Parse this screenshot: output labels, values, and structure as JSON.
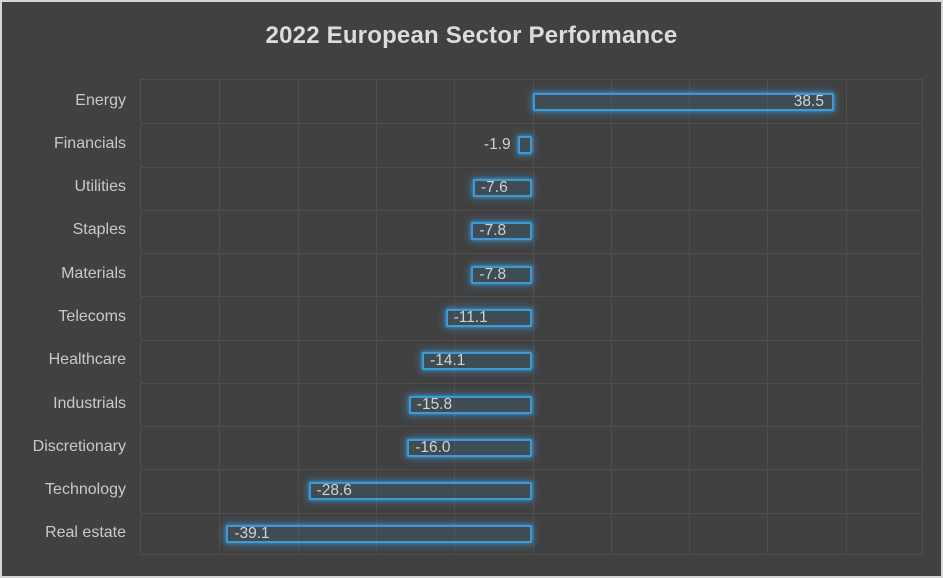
{
  "chart_data": {
    "type": "bar",
    "orientation": "horizontal",
    "title": "2022 European Sector Performance",
    "categories": [
      "Energy",
      "Financials",
      "Utilities",
      "Staples",
      "Materials",
      "Telecoms",
      "Healthcare",
      "Industrials",
      "Discretionary",
      "Technology",
      "Real estate"
    ],
    "values": [
      38.5,
      -1.9,
      -7.6,
      -7.8,
      -7.8,
      -11.1,
      -14.1,
      -15.8,
      -16.0,
      -28.6,
      -39.1
    ],
    "value_labels": [
      "38.5",
      "-1.9",
      "-7.6",
      "-7.8",
      "-7.8",
      "-11.1",
      "-14.1",
      "-15.8",
      "-16.0",
      "-28.6",
      "-39.1"
    ],
    "xlabel": "",
    "ylabel": "",
    "xlim": [
      -50,
      50
    ],
    "grid_step": 10,
    "grid": true,
    "legend": false,
    "axis_tick_labels_visible": false,
    "data_label_position": "inside-end"
  },
  "colors": {
    "background": "#414141",
    "outer_border": "#d6d6d6",
    "gridline": "#4f4f4f",
    "bar_stroke": "#3e9ad5",
    "bar_fill": "rgba(62,154,213,0.13)",
    "title_text": "#dcdcdc",
    "category_text": "#c9c9c9",
    "value_text": "#d2d2d2"
  }
}
